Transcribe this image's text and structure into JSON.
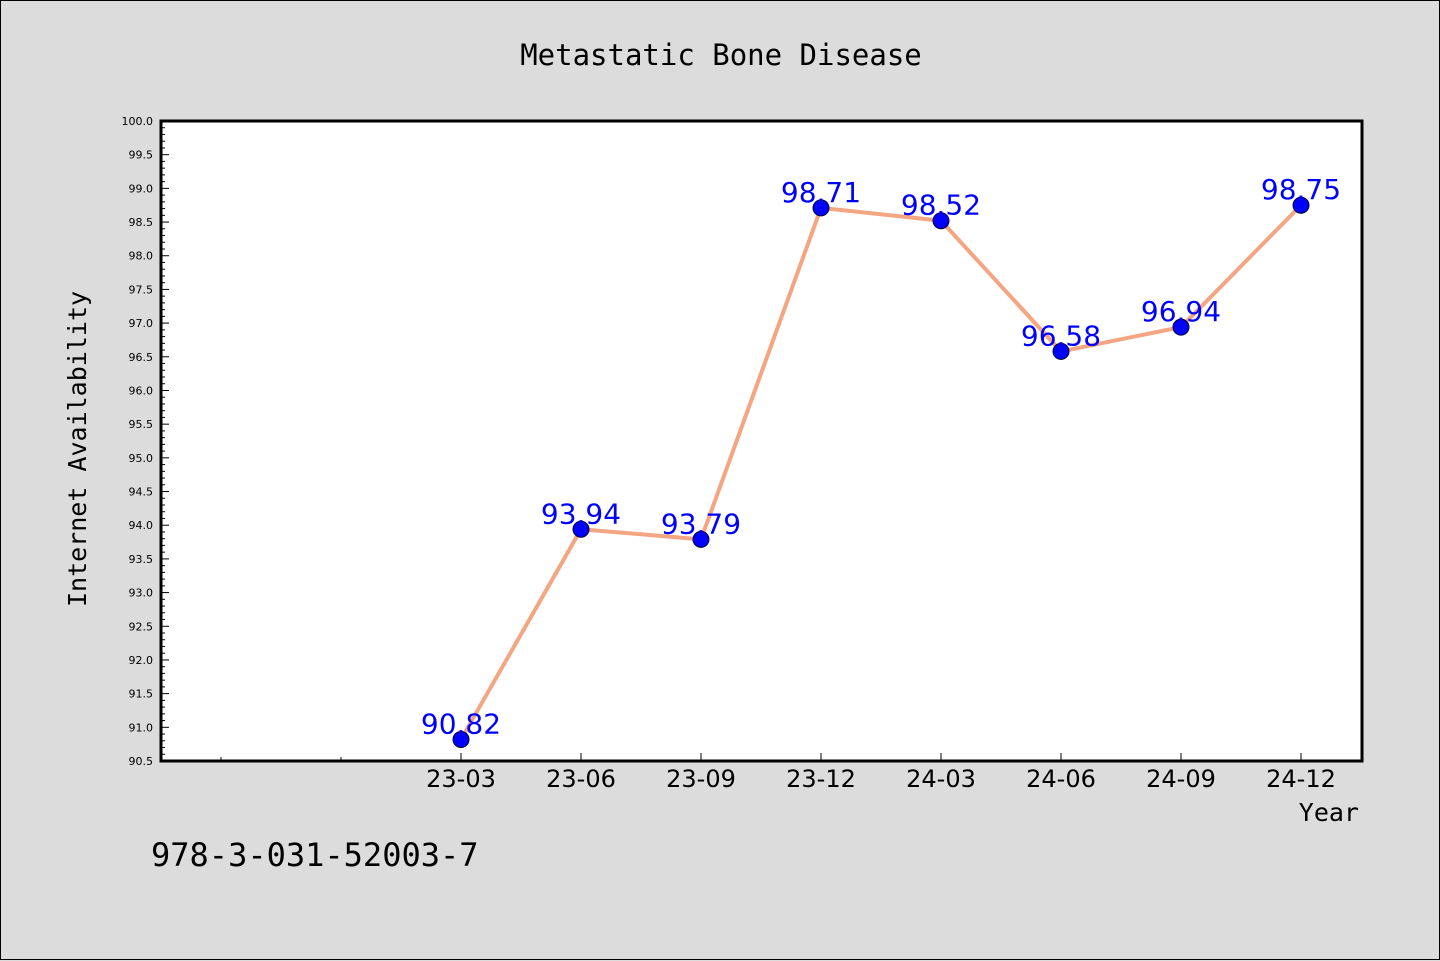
{
  "chart_data": {
    "type": "line",
    "title": "Metastatic Bone Disease",
    "xlabel": "Year",
    "ylabel": "Internet Availability",
    "categories": [
      "23-03",
      "23-06",
      "23-09",
      "23-12",
      "24-03",
      "24-06",
      "24-09",
      "24-12"
    ],
    "values": [
      90.82,
      93.94,
      93.79,
      98.71,
      98.52,
      96.58,
      96.94,
      98.75
    ],
    "data_labels": [
      "90.82",
      "93.94",
      "93.79",
      "98.71",
      "98.52",
      "96.58",
      "96.94",
      "98.75"
    ],
    "ylim": [
      90.5,
      100.0
    ],
    "y_ticks": [
      "90.5",
      "91.0",
      "91.5",
      "92.0",
      "92.5",
      "93.0",
      "93.5",
      "94.0",
      "94.5",
      "95.0",
      "95.5",
      "96.0",
      "96.5",
      "97.0",
      "97.5",
      "98.0",
      "98.5",
      "99.0",
      "99.5",
      "100.0"
    ],
    "grid": false,
    "legend": "none",
    "colors": {
      "line": "#f4a582",
      "marker": "#0000ff",
      "label": "#0000ff",
      "background": "#dcdcdc",
      "plot_background": "#ffffff"
    }
  },
  "footnote": "978-3-031-52003-7"
}
